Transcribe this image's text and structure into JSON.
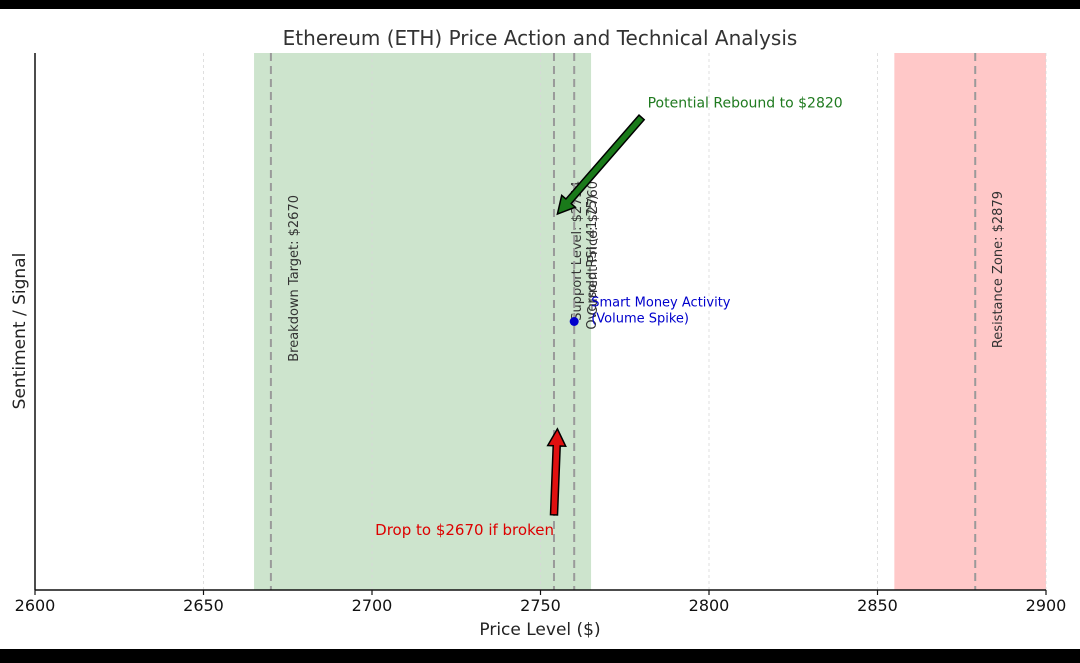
{
  "chart_data": {
    "type": "scatter",
    "title": "Ethereum (ETH) Price Action and Technical Analysis",
    "xlabel": "Price Level ($)",
    "ylabel": "Sentiment / Signal",
    "xlim": [
      2600,
      2900
    ],
    "ylim": [
      0,
      1
    ],
    "x_ticks": [
      2600,
      2650,
      2700,
      2750,
      2800,
      2850,
      2900
    ],
    "grid": "vertical dashed",
    "shaded_zones": [
      {
        "from": 2665,
        "to": 2765,
        "color": "#cde4cd"
      },
      {
        "from": 2855,
        "to": 2900,
        "color": "#ffc8c8"
      }
    ],
    "reference_lines": [
      {
        "x": 2670,
        "label": "Breakdown Target: $2670"
      },
      {
        "x": 2754,
        "label": "Support Level: $2754"
      },
      {
        "x": 2760,
        "label": "Current Price: $2760"
      },
      {
        "x": 2760,
        "label": "Oversold RSI (41.75)"
      },
      {
        "x": 2879,
        "label": "Resistance Zone: $2879"
      }
    ],
    "points": [
      {
        "x": 2760,
        "y": 0.5,
        "label": "Smart Money Activity\n(Volume Spike)",
        "color": "#0000cc"
      }
    ],
    "annotations": [
      {
        "text": "Potential Rebound to $2820",
        "from": [
          2780,
          0.88
        ],
        "to": [
          2755,
          0.7
        ],
        "color": "#1f7a1f",
        "arrow_fill": "#1a7a1a"
      },
      {
        "text": "Drop to $2670 if broken",
        "from": [
          2754,
          0.14
        ],
        "to": [
          2755,
          0.3
        ],
        "color": "#dd0000",
        "arrow_fill": "#e01010"
      }
    ]
  }
}
